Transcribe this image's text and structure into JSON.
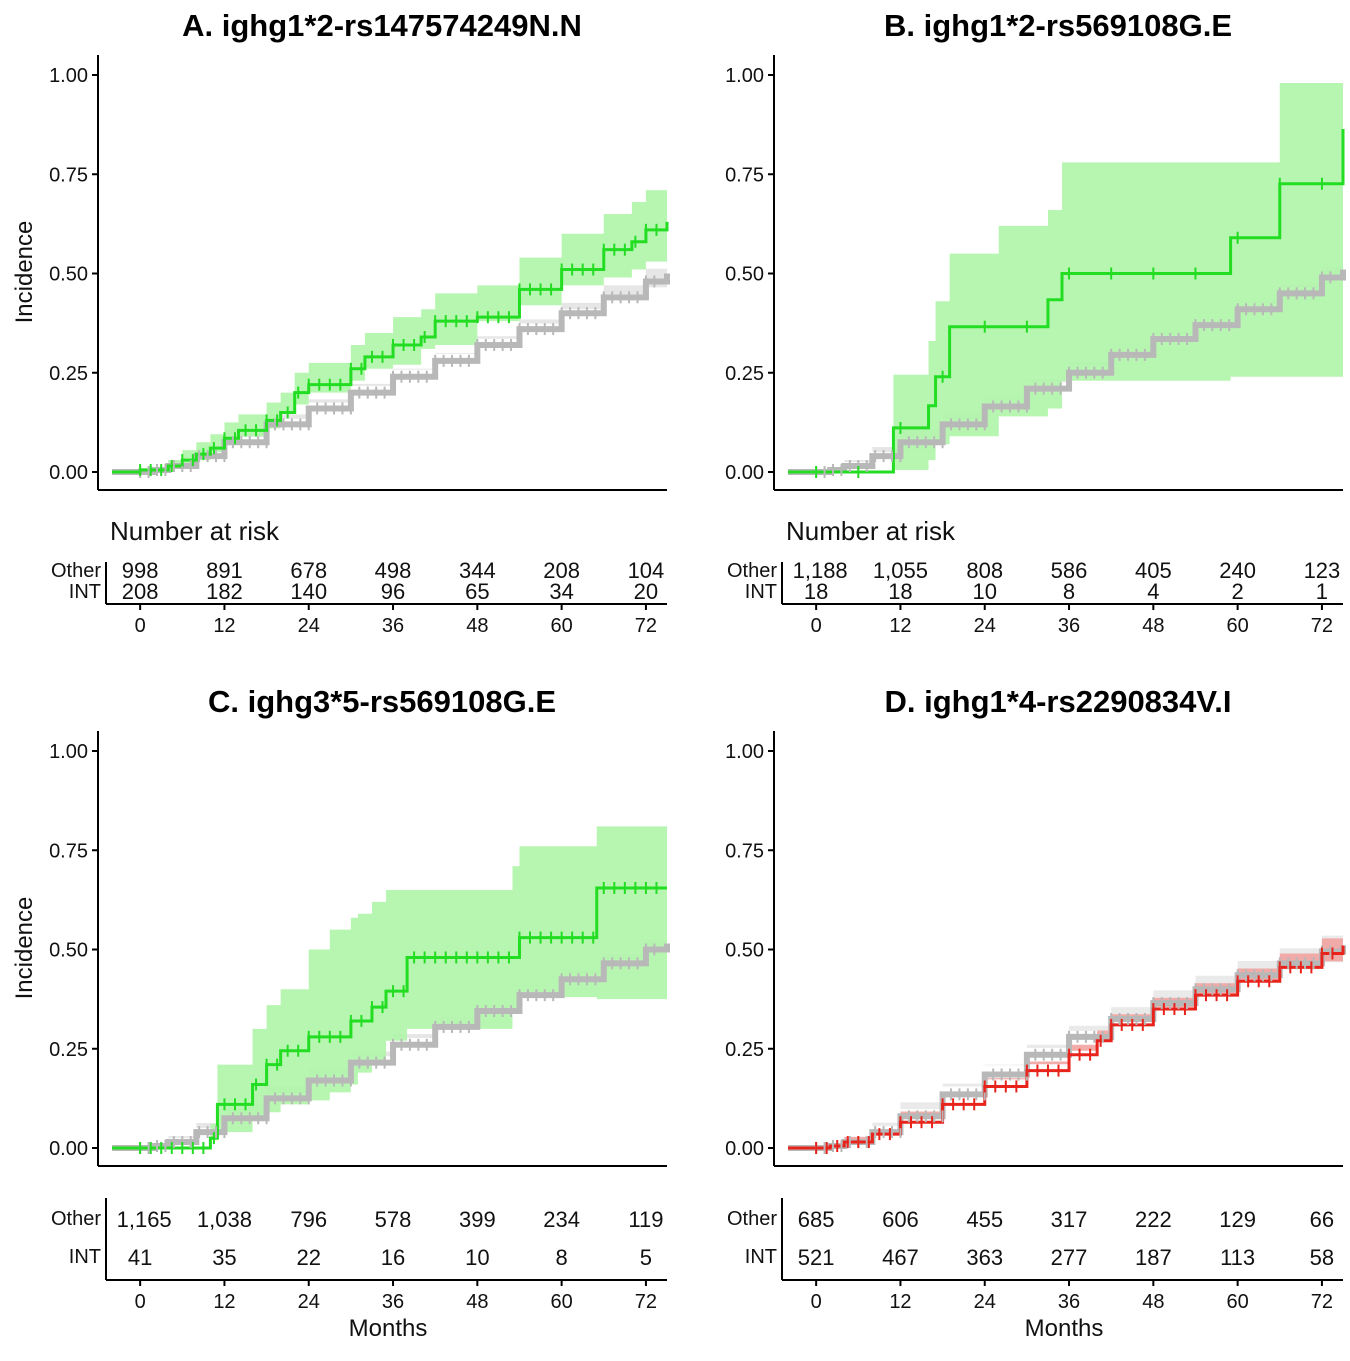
{
  "chart_data": [
    {
      "type": "line",
      "title": "A. ighg1*2-rs147574249N.N",
      "ylabel": "Incidence",
      "xlabel": "",
      "xlim": [
        -6,
        75
      ],
      "ylim": [
        0,
        1
      ],
      "x_ticks": [
        "0",
        "12",
        "24",
        "36",
        "48",
        "60",
        "72"
      ],
      "y_ticks": [
        "0.00",
        "0.25",
        "0.50",
        "0.75",
        "1.00"
      ],
      "grid": false,
      "risk_table_title": "Number at risk",
      "groups": [
        {
          "label": "Other",
          "color": "#b8b8b8",
          "band": "#e2e2e2",
          "at_risk": [
            "998",
            "891",
            "678",
            "498",
            "344",
            "208",
            "104"
          ]
        },
        {
          "label": "INT",
          "color": "#22dd22",
          "band": "#aff5a9",
          "at_risk": [
            "208",
            "182",
            "140",
            "96",
            "65",
            "34",
            "20"
          ]
        }
      ],
      "series": [
        {
          "name": "Other",
          "x": [
            -4,
            2,
            4,
            8,
            12,
            18,
            24,
            30,
            36,
            42,
            48,
            54,
            60,
            66,
            72,
            75
          ],
          "y": [
            0,
            0.005,
            0.015,
            0.04,
            0.075,
            0.12,
            0.16,
            0.2,
            0.24,
            0.28,
            0.32,
            0.36,
            0.4,
            0.44,
            0.48,
            0.5
          ],
          "lower": [
            0,
            0,
            0.005,
            0.03,
            0.062,
            0.106,
            0.145,
            0.183,
            0.222,
            0.26,
            0.298,
            0.336,
            0.374,
            0.41,
            0.448,
            0.465
          ],
          "upper": [
            0,
            0.01,
            0.025,
            0.05,
            0.088,
            0.134,
            0.175,
            0.217,
            0.258,
            0.3,
            0.342,
            0.384,
            0.426,
            0.47,
            0.512,
            0.535
          ]
        },
        {
          "name": "INT",
          "x": [
            -4,
            0,
            4,
            6,
            8,
            10,
            12,
            14,
            18,
            20,
            22,
            24,
            30,
            32,
            36,
            40,
            42,
            48,
            54,
            60,
            66,
            70,
            72,
            75
          ],
          "y": [
            0,
            0.005,
            0.015,
            0.03,
            0.045,
            0.06,
            0.085,
            0.105,
            0.13,
            0.15,
            0.2,
            0.22,
            0.26,
            0.29,
            0.32,
            0.34,
            0.38,
            0.39,
            0.46,
            0.51,
            0.56,
            0.58,
            0.61,
            0.63
          ],
          "lower": [
            0,
            0,
            0,
            0.008,
            0.02,
            0.03,
            0.05,
            0.07,
            0.09,
            0.11,
            0.15,
            0.17,
            0.2,
            0.23,
            0.26,
            0.27,
            0.31,
            0.32,
            0.38,
            0.42,
            0.47,
            0.49,
            0.51,
            0.53
          ],
          "upper": [
            0,
            0.01,
            0.03,
            0.055,
            0.075,
            0.095,
            0.125,
            0.145,
            0.175,
            0.2,
            0.25,
            0.275,
            0.32,
            0.35,
            0.39,
            0.41,
            0.45,
            0.47,
            0.54,
            0.6,
            0.65,
            0.68,
            0.71,
            0.74
          ]
        }
      ]
    },
    {
      "type": "line",
      "title": "B. ighg1*2-rs569108G.E",
      "ylabel": "",
      "xlabel": "",
      "xlim": [
        -6,
        75
      ],
      "ylim": [
        0,
        1
      ],
      "x_ticks": [
        "0",
        "12",
        "24",
        "36",
        "48",
        "60",
        "72"
      ],
      "y_ticks": [
        "0.00",
        "0.25",
        "0.50",
        "0.75",
        "1.00"
      ],
      "grid": false,
      "risk_table_title": "Number at risk",
      "groups": [
        {
          "label": "Other",
          "color": "#b8b8b8",
          "band": "#e2e2e2",
          "at_risk": [
            "1,188",
            "1,055",
            "808",
            "586",
            "405",
            "240",
            "123"
          ]
        },
        {
          "label": "INT",
          "color": "#22dd22",
          "band": "#aff5a9",
          "at_risk": [
            "18",
            "18",
            "10",
            "8",
            "4",
            "2",
            "1"
          ]
        }
      ],
      "series": [
        {
          "name": "Other",
          "x": [
            -4,
            2,
            4,
            8,
            12,
            18,
            24,
            30,
            36,
            42,
            48,
            54,
            60,
            66,
            72,
            75
          ],
          "y": [
            0,
            0.005,
            0.015,
            0.04,
            0.075,
            0.12,
            0.165,
            0.21,
            0.25,
            0.295,
            0.335,
            0.37,
            0.41,
            0.45,
            0.49,
            0.51
          ],
          "lower": [
            0,
            0,
            0.005,
            0.03,
            0.063,
            0.107,
            0.15,
            0.194,
            0.233,
            0.277,
            0.316,
            0.35,
            0.389,
            0.427,
            0.465,
            0.483
          ],
          "upper": [
            0,
            0.01,
            0.025,
            0.05,
            0.087,
            0.133,
            0.18,
            0.226,
            0.267,
            0.313,
            0.354,
            0.39,
            0.431,
            0.473,
            0.515,
            0.537
          ]
        },
        {
          "name": "INT",
          "x": [
            -4,
            11,
            16,
            17,
            19,
            26,
            33,
            35,
            59,
            66,
            75
          ],
          "y": [
            0,
            0.111,
            0.167,
            0.24,
            0.366,
            0.366,
            0.434,
            0.5,
            0.59,
            0.726,
            0.864
          ],
          "lower": [
            0,
            0,
            0.005,
            0.03,
            0.07,
            0.09,
            0.14,
            0.16,
            0.23,
            0.24,
            0.24
          ],
          "upper": [
            0,
            0.245,
            0.33,
            0.43,
            0.55,
            0.62,
            0.66,
            0.78,
            0.78,
            0.98,
            0.98
          ]
        }
      ]
    },
    {
      "type": "line",
      "title": "C. ighg3*5-rs569108G.E",
      "ylabel": "Incidence",
      "xlabel": "Months",
      "xlim": [
        -6,
        75
      ],
      "ylim": [
        0,
        1
      ],
      "x_ticks": [
        "0",
        "12",
        "24",
        "36",
        "48",
        "60",
        "72"
      ],
      "y_ticks": [
        "0.00",
        "0.25",
        "0.50",
        "0.75",
        "1.00"
      ],
      "grid": false,
      "risk_table_title": "",
      "groups": [
        {
          "label": "Other",
          "color": "#b8b8b8",
          "band": "#e2e2e2",
          "at_risk": [
            "1,165",
            "1,038",
            "796",
            "578",
            "399",
            "234",
            "119"
          ]
        },
        {
          "label": "INT",
          "color": "#22dd22",
          "band": "#aff5a9",
          "at_risk": [
            "41",
            "35",
            "22",
            "16",
            "10",
            "8",
            "5"
          ]
        }
      ],
      "series": [
        {
          "name": "Other",
          "x": [
            -4,
            2,
            4,
            8,
            12,
            18,
            24,
            30,
            36,
            42,
            48,
            54,
            60,
            66,
            72,
            75
          ],
          "y": [
            0,
            0.005,
            0.015,
            0.04,
            0.075,
            0.125,
            0.17,
            0.215,
            0.26,
            0.305,
            0.345,
            0.385,
            0.425,
            0.465,
            0.5,
            0.515
          ],
          "lower": [
            0,
            0,
            0.005,
            0.03,
            0.063,
            0.112,
            0.155,
            0.199,
            0.243,
            0.287,
            0.326,
            0.365,
            0.404,
            0.442,
            0.476,
            0.49
          ],
          "upper": [
            0,
            0.01,
            0.025,
            0.05,
            0.087,
            0.138,
            0.185,
            0.231,
            0.277,
            0.323,
            0.364,
            0.405,
            0.446,
            0.488,
            0.524,
            0.54
          ]
        },
        {
          "name": "INT",
          "x": [
            -4,
            10,
            11,
            16,
            18,
            20,
            24,
            27,
            30,
            31,
            33,
            35,
            38,
            53,
            54,
            65,
            75
          ],
          "y": [
            0,
            0.025,
            0.11,
            0.16,
            0.21,
            0.245,
            0.28,
            0.28,
            0.32,
            0.32,
            0.355,
            0.395,
            0.48,
            0.48,
            0.53,
            0.655,
            0.655
          ],
          "lower": [
            0,
            0,
            0.02,
            0.04,
            0.07,
            0.09,
            0.11,
            0.12,
            0.14,
            0.16,
            0.19,
            0.22,
            0.27,
            0.3,
            0.34,
            0.38,
            0.375
          ],
          "upper": [
            0,
            0.06,
            0.21,
            0.3,
            0.36,
            0.4,
            0.5,
            0.55,
            0.58,
            0.59,
            0.62,
            0.65,
            0.65,
            0.71,
            0.76,
            0.81,
            0.81
          ]
        }
      ]
    },
    {
      "type": "line",
      "title": "D. ighg1*4-rs2290834V.I",
      "ylabel": "",
      "xlabel": "Months",
      "xlim": [
        -6,
        75
      ],
      "ylim": [
        0,
        1
      ],
      "x_ticks": [
        "0",
        "12",
        "24",
        "36",
        "48",
        "60",
        "72"
      ],
      "y_ticks": [
        "0.00",
        "0.25",
        "0.50",
        "0.75",
        "1.00"
      ],
      "grid": false,
      "risk_table_title": "",
      "groups": [
        {
          "label": "Other",
          "color": "#b8b8b8",
          "band": "#e6e6e6",
          "at_risk": [
            "685",
            "606",
            "455",
            "317",
            "222",
            "129",
            "66"
          ]
        },
        {
          "label": "INT",
          "color": "#e8231b",
          "band": "#f1a3a0",
          "at_risk": [
            "521",
            "467",
            "363",
            "277",
            "187",
            "113",
            "58"
          ]
        }
      ],
      "series": [
        {
          "name": "Other",
          "x": [
            -4,
            2,
            4,
            8,
            12,
            18,
            24,
            30,
            36,
            42,
            48,
            54,
            60,
            66,
            72,
            75
          ],
          "y": [
            0,
            0.005,
            0.015,
            0.04,
            0.08,
            0.135,
            0.185,
            0.235,
            0.28,
            0.325,
            0.365,
            0.4,
            0.435,
            0.465,
            0.495,
            0.51
          ],
          "lower": [
            0,
            0,
            0.004,
            0.027,
            0.064,
            0.115,
            0.162,
            0.21,
            0.252,
            0.295,
            0.333,
            0.366,
            0.399,
            0.427,
            0.455,
            0.468
          ],
          "upper": [
            0,
            0.012,
            0.028,
            0.055,
            0.098,
            0.155,
            0.208,
            0.26,
            0.308,
            0.355,
            0.397,
            0.434,
            0.471,
            0.503,
            0.535,
            0.552
          ]
        },
        {
          "name": "INT",
          "x": [
            -4,
            2,
            4,
            8,
            12,
            18,
            24,
            30,
            36,
            40,
            42,
            48,
            54,
            60,
            66,
            72,
            75
          ],
          "y": [
            0,
            0.005,
            0.015,
            0.035,
            0.065,
            0.11,
            0.155,
            0.195,
            0.235,
            0.27,
            0.31,
            0.35,
            0.385,
            0.42,
            0.455,
            0.49,
            0.51
          ],
          "lower": [
            0,
            0,
            0.004,
            0.022,
            0.05,
            0.092,
            0.135,
            0.173,
            0.211,
            0.245,
            0.284,
            0.322,
            0.355,
            0.388,
            0.421,
            0.453,
            0.47
          ],
          "upper": [
            0,
            0.01,
            0.028,
            0.05,
            0.082,
            0.128,
            0.176,
            0.218,
            0.26,
            0.296,
            0.337,
            0.378,
            0.415,
            0.452,
            0.49,
            0.528,
            0.55
          ]
        }
      ]
    }
  ]
}
